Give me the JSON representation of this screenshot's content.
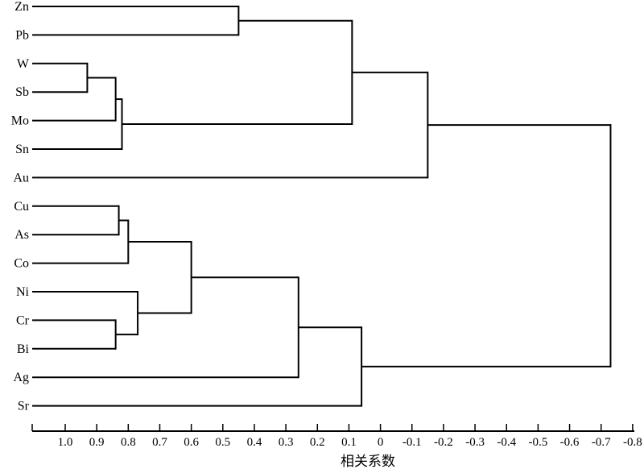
{
  "chart_data": {
    "type": "dendrogram",
    "orientation": "horizontal",
    "xlabel": "相关系数",
    "x_axis": {
      "range": [
        1.1,
        -0.8
      ],
      "ticks": [
        {
          "value": 1.0,
          "label": "1.0"
        },
        {
          "value": 0.9,
          "label": "0.9"
        },
        {
          "value": 0.8,
          "label": "0.8"
        },
        {
          "value": 0.7,
          "label": "0.7"
        },
        {
          "value": 0.6,
          "label": "0.6"
        },
        {
          "value": 0.5,
          "label": "0.5"
        },
        {
          "value": 0.4,
          "label": "0.4"
        },
        {
          "value": 0.3,
          "label": "0.3"
        },
        {
          "value": 0.2,
          "label": "0.2"
        },
        {
          "value": 0.1,
          "label": "0.1"
        },
        {
          "value": 0.0,
          "label": "0"
        },
        {
          "value": -0.1,
          "label": "-0.1"
        },
        {
          "value": -0.2,
          "label": "-0.2"
        },
        {
          "value": -0.3,
          "label": "-0.3"
        },
        {
          "value": -0.4,
          "label": "-0.4"
        },
        {
          "value": -0.5,
          "label": "-0.5"
        },
        {
          "value": -0.6,
          "label": "-0.6"
        },
        {
          "value": -0.7,
          "label": "-0.7"
        },
        {
          "value": -0.8,
          "label": "-0.8"
        }
      ]
    },
    "leaves": [
      "Zn",
      "Pb",
      "W",
      "Sb",
      "Mo",
      "Sn",
      "Au",
      "Cu",
      "As",
      "Co",
      "Ni",
      "Cr",
      "Bi",
      "Ag",
      "Sr"
    ],
    "merges": [
      {
        "id": "m1",
        "children": [
          "W",
          "Sb"
        ],
        "similarity": 0.93
      },
      {
        "id": "m2",
        "children": [
          "Cu",
          "As"
        ],
        "similarity": 0.83
      },
      {
        "id": "m3",
        "children": [
          "Cr",
          "Bi"
        ],
        "similarity": 0.84
      },
      {
        "id": "m4",
        "children": [
          "m1",
          "Mo"
        ],
        "similarity": 0.84
      },
      {
        "id": "m5",
        "children": [
          "m4",
          "Sn"
        ],
        "similarity": 0.82
      },
      {
        "id": "m6",
        "children": [
          "m2",
          "Co"
        ],
        "similarity": 0.8
      },
      {
        "id": "m7",
        "children": [
          "Ni",
          "m3"
        ],
        "similarity": 0.77
      },
      {
        "id": "m8",
        "children": [
          "m6",
          "m7"
        ],
        "similarity": 0.6
      },
      {
        "id": "m9",
        "children": [
          "Zn",
          "Pb"
        ],
        "similarity": 0.45
      },
      {
        "id": "m10",
        "children": [
          "m8",
          "Ag"
        ],
        "similarity": 0.26
      },
      {
        "id": "m11",
        "children": [
          "m9",
          "m5"
        ],
        "similarity": 0.09
      },
      {
        "id": "m12",
        "children": [
          "m10",
          "Sr"
        ],
        "similarity": 0.06
      },
      {
        "id": "m13",
        "children": [
          "m11",
          "Au"
        ],
        "similarity": -0.15
      },
      {
        "id": "m14",
        "children": [
          "m13",
          "m12"
        ],
        "similarity": -0.73
      }
    ]
  }
}
